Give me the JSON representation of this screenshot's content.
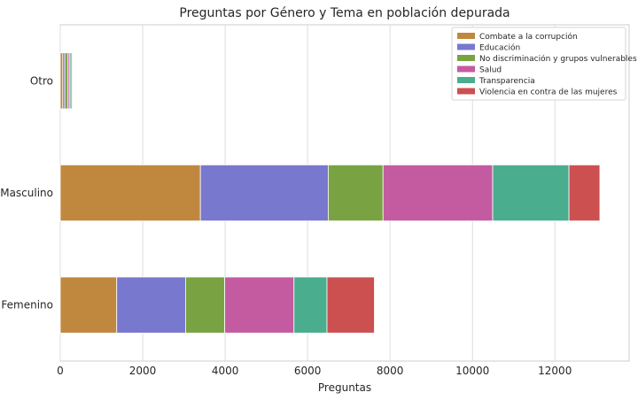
{
  "chart_data": {
    "type": "bar",
    "orientation": "horizontal",
    "stacked": true,
    "title": "Preguntas por Género y Tema en población depurada",
    "xlabel": "Preguntas",
    "ylabel": "",
    "xlim": [
      0,
      13800
    ],
    "xticks": [
      0,
      2000,
      4000,
      6000,
      8000,
      10000,
      12000
    ],
    "grid": true,
    "legend_position": "top-right",
    "categories": [
      "Femenino",
      "Masculino",
      "Otro"
    ],
    "series": [
      {
        "name": "Combate a la corrupción",
        "color": "#c0883e",
        "values": [
          1370,
          3400,
          60
        ]
      },
      {
        "name": "Educación",
        "color": "#7878cf",
        "values": [
          1670,
          3100,
          50
        ]
      },
      {
        "name": "No discriminación y grupos vulnerables",
        "color": "#79a342",
        "values": [
          950,
          1330,
          70
        ]
      },
      {
        "name": "Salud",
        "color": "#c45ba0",
        "values": [
          1680,
          2660,
          40
        ]
      },
      {
        "name": "Transparencia",
        "color": "#49ad8e",
        "values": [
          800,
          1850,
          40
        ]
      },
      {
        "name": "Violencia en contra de las mujeres",
        "color": "#cc5050",
        "values": [
          1150,
          750,
          30
        ]
      }
    ]
  }
}
